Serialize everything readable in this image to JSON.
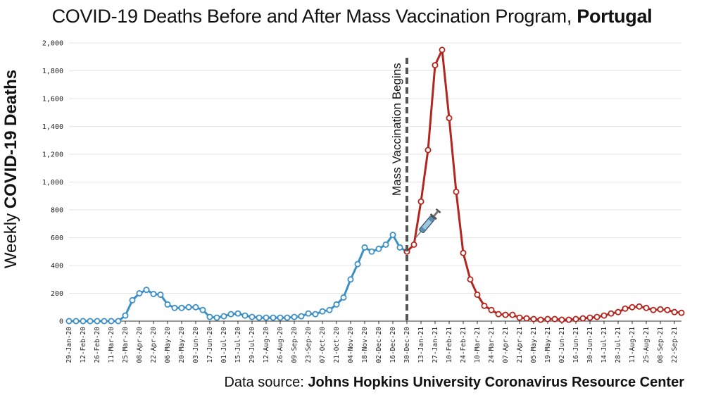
{
  "title": {
    "main": "COVID-19 Deaths Before and After Mass Vaccination Program, ",
    "country": "Portugal"
  },
  "ylabel": {
    "prefix": "Weekly ",
    "bold": "COVID-19 Deaths"
  },
  "source": {
    "prefix": "Data source: ",
    "bold": "Johns Hopkins University Coronavirus Resource Center"
  },
  "annotation": {
    "vaccination_label": "Mass Vaccination Begins",
    "marker_icon": "syringe-icon"
  },
  "colors": {
    "before": "#3c8fc4",
    "after": "#b3261e",
    "divider": "#555555",
    "grid": "#e6e6e6"
  },
  "chart_data": {
    "type": "line",
    "ylim": [
      0,
      2000
    ],
    "yticks": [
      "0",
      "200",
      "400",
      "600",
      "800",
      "1,000",
      "1,200",
      "1,400",
      "1,600",
      "1,800",
      "2,000"
    ],
    "grid": true,
    "vaccination_start": "30-Dec-20",
    "x_labels": [
      "29-Jan-20",
      "12-Feb-20",
      "26-Feb-20",
      "11-Mar-20",
      "25-Mar-20",
      "08-Apr-20",
      "22-Apr-20",
      "06-May-20",
      "20-May-20",
      "03-Jun-20",
      "17-Jun-20",
      "01-Jul-20",
      "15-Jul-20",
      "29-Jul-20",
      "12-Aug-20",
      "26-Aug-20",
      "09-Sep-20",
      "23-Sep-20",
      "07-Oct-20",
      "21-Oct-20",
      "04-Nov-20",
      "18-Nov-20",
      "02-Dec-20",
      "16-Dec-20",
      "30-Dec-20",
      "13-Jan-21",
      "27-Jan-21",
      "10-Feb-21",
      "24-Feb-21",
      "10-Mar-21",
      "24-Mar-21",
      "07-Apr-21",
      "21-Apr-21",
      "05-May-21",
      "19-May-21",
      "02-Jun-21",
      "16-Jun-21",
      "30-Jun-21",
      "14-Jul-21",
      "28-Jul-21",
      "11-Aug-21",
      "25-Aug-21",
      "08-Sep-21",
      "22-Sep-21"
    ],
    "series": [
      {
        "segment": "before",
        "values": [
          0,
          0,
          0,
          0,
          0,
          0,
          0,
          0,
          40,
          150,
          200,
          225,
          195,
          190,
          120,
          95,
          95,
          100,
          100,
          80,
          30,
          25,
          35,
          50,
          55,
          40,
          30,
          25,
          25,
          25,
          25,
          25,
          30,
          35,
          55,
          50,
          70,
          80,
          120,
          170,
          300,
          410,
          530,
          500,
          520,
          550,
          620,
          530,
          500
        ]
      },
      {
        "segment": "after",
        "values": [
          500,
          550,
          860,
          1230,
          1840,
          1950,
          1460,
          930,
          490,
          300,
          190,
          110,
          80,
          50,
          45,
          45,
          25,
          20,
          15,
          10,
          15,
          15,
          10,
          10,
          15,
          20,
          25,
          30,
          40,
          55,
          65,
          90,
          100,
          105,
          95,
          80,
          85,
          80,
          65,
          60
        ]
      }
    ]
  }
}
